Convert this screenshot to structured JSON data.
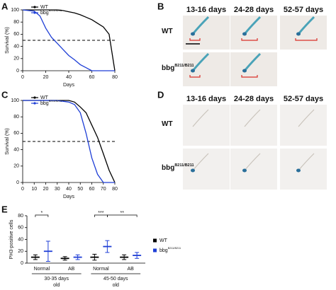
{
  "panel_letters": [
    "A",
    "B",
    "C",
    "D",
    "E"
  ],
  "image_panels": [
    {
      "columns": [
        "13-16 days",
        "24-28 days",
        "52-57 days"
      ],
      "rows": [
        {
          "label": "WT"
        },
        {
          "label": "bbg",
          "sup": "B211/B211"
        }
      ]
    },
    {
      "columns": [
        "13-16 days",
        "24-28 days",
        "52-57 days"
      ],
      "rows": [
        {
          "label": "WT"
        },
        {
          "label": "bbg",
          "sup": "B211/B211"
        }
      ]
    }
  ],
  "chart_data": [
    {
      "type": "line",
      "x_label": "Days",
      "y_label": "Survival (%)",
      "x": [
        0,
        5,
        10,
        15,
        20,
        25,
        30,
        35,
        40,
        45,
        50,
        55,
        60,
        65,
        70,
        75,
        80
      ],
      "series": [
        {
          "name": "WT",
          "color": "#000000",
          "values": [
            100,
            100,
            100,
            100,
            100,
            100,
            100,
            99,
            97,
            95,
            92,
            88,
            84,
            78,
            72,
            60,
            0
          ]
        },
        {
          "name": "bbg",
          "name_sup": "B211/B211",
          "color": "#1f3fd6",
          "values": [
            100,
            99,
            98,
            90,
            70,
            55,
            45,
            35,
            25,
            18,
            10,
            5,
            0,
            0,
            0,
            0,
            0
          ]
        }
      ],
      "xlim": [
        0,
        80
      ],
      "xticks": [
        0,
        20,
        40,
        60,
        80
      ],
      "ylim": [
        0,
        100
      ],
      "yticks": [
        0,
        20,
        40,
        60,
        80,
        100
      ],
      "hline": 50,
      "legend": "upper left"
    },
    {
      "type": "line",
      "x_label": "Days",
      "y_label": "Survival (%)",
      "x": [
        0,
        5,
        10,
        15,
        20,
        25,
        30,
        35,
        40,
        45,
        50,
        55,
        60,
        65,
        70,
        75,
        80
      ],
      "series": [
        {
          "name": "WT",
          "color": "#000000",
          "values": [
            100,
            100,
            100,
            100,
            100,
            100,
            100,
            100,
            100,
            98,
            92,
            85,
            70,
            55,
            35,
            15,
            0
          ]
        },
        {
          "name": "bbg",
          "name_sup": "B211/B211",
          "color": "#1f3fd6",
          "values": [
            100,
            100,
            100,
            100,
            100,
            100,
            100,
            99,
            98,
            95,
            85,
            60,
            30,
            10,
            0,
            0,
            0
          ]
        }
      ],
      "xlim": [
        0,
        80
      ],
      "xticks": [
        0,
        10,
        20,
        30,
        40,
        50,
        60,
        70,
        80
      ],
      "ylim": [
        0,
        100
      ],
      "yticks": [
        0,
        20,
        40,
        60,
        80,
        100
      ],
      "hline": 50,
      "legend": "upper left"
    },
    {
      "type": "dot",
      "y_label": "PH3-positive cells",
      "categories": [
        "Normal",
        "AB",
        "Normal",
        "AB"
      ],
      "groups": [
        {
          "lines": [
            "30-35 days",
            "old"
          ]
        },
        {
          "lines": [
            "45-50 days",
            "old"
          ]
        }
      ],
      "series": [
        {
          "name": "WT",
          "color": "#000000",
          "values": [
            10,
            8,
            10,
            10
          ],
          "errors": [
            4,
            3,
            5,
            4
          ]
        },
        {
          "name": "bbg",
          "name_sup": "B211/B211",
          "color": "#1f3fd6",
          "values": [
            20,
            10,
            28,
            13
          ],
          "errors": [
            17,
            4,
            10,
            5
          ]
        }
      ],
      "ylim": [
        0,
        80
      ],
      "yticks": [
        0,
        20,
        40,
        60,
        80
      ],
      "annotations": [
        "*",
        "***",
        "**"
      ],
      "legend": "right"
    }
  ]
}
